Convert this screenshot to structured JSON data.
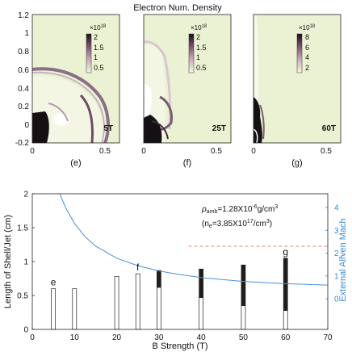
{
  "figure_title": "Electron Num. Density",
  "top_axes": {
    "y_ticks": [
      "1.2",
      "1",
      "0.8",
      "0.6",
      "0.4",
      "0.2",
      "0",
      "-0.2"
    ],
    "x_ticks": [
      "0",
      "0.5"
    ]
  },
  "panels": [
    {
      "label": "5T",
      "caption": "(e)",
      "colorbar_scale": "×10",
      "colorbar_exp": "18",
      "colorbar_ticks": [
        "2",
        "1.5",
        "1",
        "0.5"
      ]
    },
    {
      "label": "25T",
      "caption": "(f)",
      "colorbar_scale": "×10",
      "colorbar_exp": "18",
      "colorbar_ticks": [
        "2",
        "1.5",
        "1",
        "0.5"
      ]
    },
    {
      "label": "60T",
      "caption": "(g)",
      "colorbar_scale": "×10",
      "colorbar_exp": "18",
      "colorbar_ticks": [
        "8",
        "6",
        "4",
        "2"
      ]
    }
  ],
  "annotation": {
    "rho_symbol": "ρ",
    "rho_sub": "amb",
    "rho_value": "=1.28X10",
    "rho_exp": "-6",
    "rho_unit": "g/cm",
    "rho_unit_exp": "3",
    "ne_open": "(n",
    "ne_sub": "e",
    "ne_value": "=3.85X10",
    "ne_exp": "17",
    "ne_unit": "/cm",
    "ne_unit_exp": "3",
    "ne_close": ")"
  },
  "chart_data": {
    "type": "bar",
    "xlabel": "B Strength (T)",
    "ylabel": "Length of Shell/Jet (cm)",
    "y2label": "External Alfven Mach",
    "xlim": [
      0,
      70
    ],
    "ylim": [
      0,
      2
    ],
    "y2lim": [
      -1.34,
      4.6
    ],
    "x_ticks": [
      0,
      10,
      20,
      30,
      40,
      50,
      60,
      70
    ],
    "y_ticks": [
      0,
      0.5,
      1,
      1.5,
      2
    ],
    "y2_ticks": [
      0,
      1,
      2,
      3,
      4
    ],
    "bars": [
      {
        "x": 5,
        "shell": 0.6,
        "jet": 0.0,
        "label": "e"
      },
      {
        "x": 10,
        "shell": 0.6,
        "jet": 0.0
      },
      {
        "x": 20,
        "shell": 0.78,
        "jet": 0.0
      },
      {
        "x": 25,
        "shell": 0.82,
        "jet": 0.0,
        "label": "f"
      },
      {
        "x": 30,
        "shell": 0.62,
        "jet": 0.25
      },
      {
        "x": 40,
        "shell": 0.47,
        "jet": 0.42
      },
      {
        "x": 50,
        "shell": 0.35,
        "jet": 0.6
      },
      {
        "x": 60,
        "shell": 0.28,
        "jet": 0.77,
        "label": "g"
      }
    ],
    "mach_curve": {
      "name": "",
      "color": "#4a90d9",
      "points": [
        [
          6.5,
          4.6
        ],
        [
          8,
          3.95
        ],
        [
          10,
          3.3
        ],
        [
          12.5,
          2.72
        ],
        [
          15,
          2.31
        ],
        [
          20,
          1.78
        ],
        [
          25,
          1.45
        ],
        [
          30,
          1.22
        ],
        [
          35,
          1.06
        ],
        [
          40,
          0.93
        ],
        [
          45,
          0.84
        ],
        [
          50,
          0.76
        ],
        [
          55,
          0.71
        ],
        [
          60,
          0.66
        ],
        [
          65,
          0.63
        ],
        [
          70,
          0.6
        ]
      ]
    },
    "threshold_line": {
      "y2": 2.3,
      "x_start": 37,
      "x_end": 70,
      "color": "#e8857a",
      "style": "dashed"
    },
    "colors": {
      "shell": "#ffffff",
      "jet": "#1e1e1e",
      "axis2": "#3a8ad6"
    }
  }
}
